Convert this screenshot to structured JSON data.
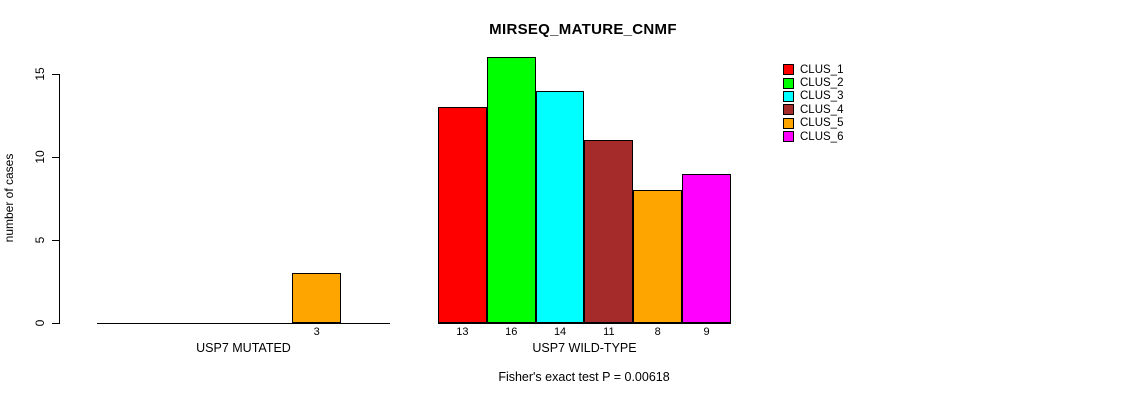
{
  "chart_data": {
    "type": "bar",
    "title": "MIRSEQ_MATURE_CNMF",
    "ylabel": "number of cases",
    "xlabel": "",
    "ylim": [
      0,
      15
    ],
    "yticks": [
      "0",
      "5",
      "10",
      "15"
    ],
    "grid": false,
    "legend_position": "right",
    "legend": [
      {
        "label": "CLUS_1",
        "color": "#FF0000"
      },
      {
        "label": "CLUS_2",
        "color": "#00FF00"
      },
      {
        "label": "CLUS_3",
        "color": "#00FFFF"
      },
      {
        "label": "CLUS_4",
        "color": "#A52A2A"
      },
      {
        "label": "CLUS_5",
        "color": "#FFA500"
      },
      {
        "label": "CLUS_6",
        "color": "#FF00FF"
      }
    ],
    "groups": [
      {
        "label": "USP7 MUTATED",
        "values": [
          0,
          0,
          0,
          0,
          3,
          0
        ]
      },
      {
        "label": "USP7 WILD-TYPE",
        "values": [
          13,
          16,
          14,
          11,
          8,
          9
        ]
      }
    ],
    "annotation": "Fisher's exact test P = 0.00618"
  }
}
